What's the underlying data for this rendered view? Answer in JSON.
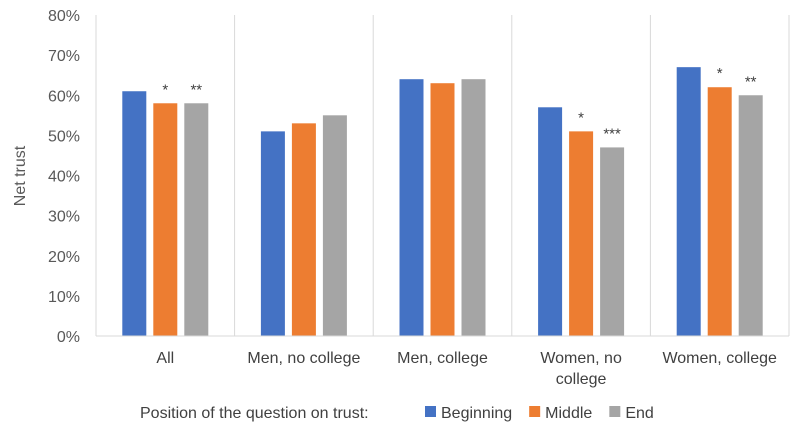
{
  "chart_data": {
    "type": "bar",
    "title": "",
    "xlabel": "",
    "ylabel": "Net trust",
    "ylim": [
      0,
      80
    ],
    "yticks": [
      "0%",
      "10%",
      "20%",
      "30%",
      "40%",
      "50%",
      "60%",
      "70%",
      "80%"
    ],
    "categories": [
      [
        "All"
      ],
      [
        "Men, no college"
      ],
      [
        "Men, college"
      ],
      [
        "Women, no",
        "college"
      ],
      [
        "Women, college"
      ]
    ],
    "series": [
      {
        "name": "Beginning",
        "color": "#4472C4",
        "values": [
          61,
          51,
          64,
          57,
          67
        ],
        "significance": [
          "",
          "",
          "",
          "",
          ""
        ]
      },
      {
        "name": "Middle",
        "color": "#ED7D31",
        "values": [
          58,
          53,
          63,
          51,
          62
        ],
        "significance": [
          "*",
          "",
          "",
          "*",
          "*"
        ]
      },
      {
        "name": "End",
        "color": "#A5A5A5",
        "values": [
          58,
          55,
          64,
          47,
          60
        ],
        "significance": [
          "**",
          "",
          "",
          "***",
          "**"
        ]
      }
    ],
    "grid": "vertical-category-separators",
    "legend": {
      "title": "Position of the question on trust:",
      "placement": "bottom"
    }
  }
}
